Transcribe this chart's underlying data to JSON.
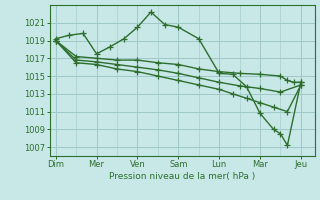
{
  "background_color": "#c8e8e8",
  "grid_color": "#a0c8c8",
  "line_color": "#2d6e2d",
  "xlabel": "Pression niveau de la mer( hPa )",
  "ylim": [
    1006,
    1023
  ],
  "yticks": [
    1007,
    1009,
    1011,
    1013,
    1015,
    1017,
    1019,
    1021
  ],
  "xtick_labels": [
    "Dim",
    "Mer",
    "Ven",
    "Sam",
    "Lun",
    "Mar",
    "Jeu"
  ],
  "xtick_positions": [
    0,
    1,
    2,
    3,
    4,
    5,
    6
  ],
  "series": [
    {
      "x": [
        0.0,
        0.33,
        0.67,
        1.0,
        1.33,
        1.67,
        2.0,
        2.33,
        2.67,
        3.0,
        3.5,
        4.0,
        4.33,
        4.67,
        5.0,
        5.33,
        5.5,
        5.67,
        6.0
      ],
      "y": [
        1019.2,
        1019.6,
        1019.8,
        1017.5,
        1018.3,
        1019.2,
        1020.5,
        1022.2,
        1020.8,
        1020.5,
        1019.2,
        1015.3,
        1015.2,
        1013.8,
        1010.8,
        1009.0,
        1008.5,
        1007.2,
        1014.3
      ]
    },
    {
      "x": [
        0.0,
        0.5,
        1.0,
        1.5,
        2.0,
        2.5,
        3.0,
        3.5,
        4.0,
        4.5,
        5.0,
        5.5,
        5.67,
        5.83,
        6.0
      ],
      "y": [
        1019.0,
        1017.2,
        1017.0,
        1016.8,
        1016.8,
        1016.5,
        1016.3,
        1015.8,
        1015.5,
        1015.3,
        1015.2,
        1015.0,
        1014.5,
        1014.3,
        1014.3
      ]
    },
    {
      "x": [
        0.0,
        0.5,
        1.0,
        1.5,
        2.0,
        2.5,
        3.0,
        3.5,
        4.0,
        4.5,
        5.0,
        5.5,
        6.0
      ],
      "y": [
        1019.0,
        1016.8,
        1016.6,
        1016.3,
        1016.0,
        1015.7,
        1015.3,
        1014.8,
        1014.3,
        1013.9,
        1013.6,
        1013.2,
        1014.0
      ]
    },
    {
      "x": [
        0.0,
        0.5,
        1.0,
        1.5,
        2.0,
        2.5,
        3.0,
        3.5,
        4.0,
        4.33,
        4.67,
        5.0,
        5.33,
        5.67,
        6.0
      ],
      "y": [
        1019.0,
        1016.5,
        1016.3,
        1015.8,
        1015.5,
        1015.0,
        1014.5,
        1014.0,
        1013.5,
        1013.0,
        1012.5,
        1012.0,
        1011.5,
        1011.0,
        1014.0
      ]
    }
  ]
}
